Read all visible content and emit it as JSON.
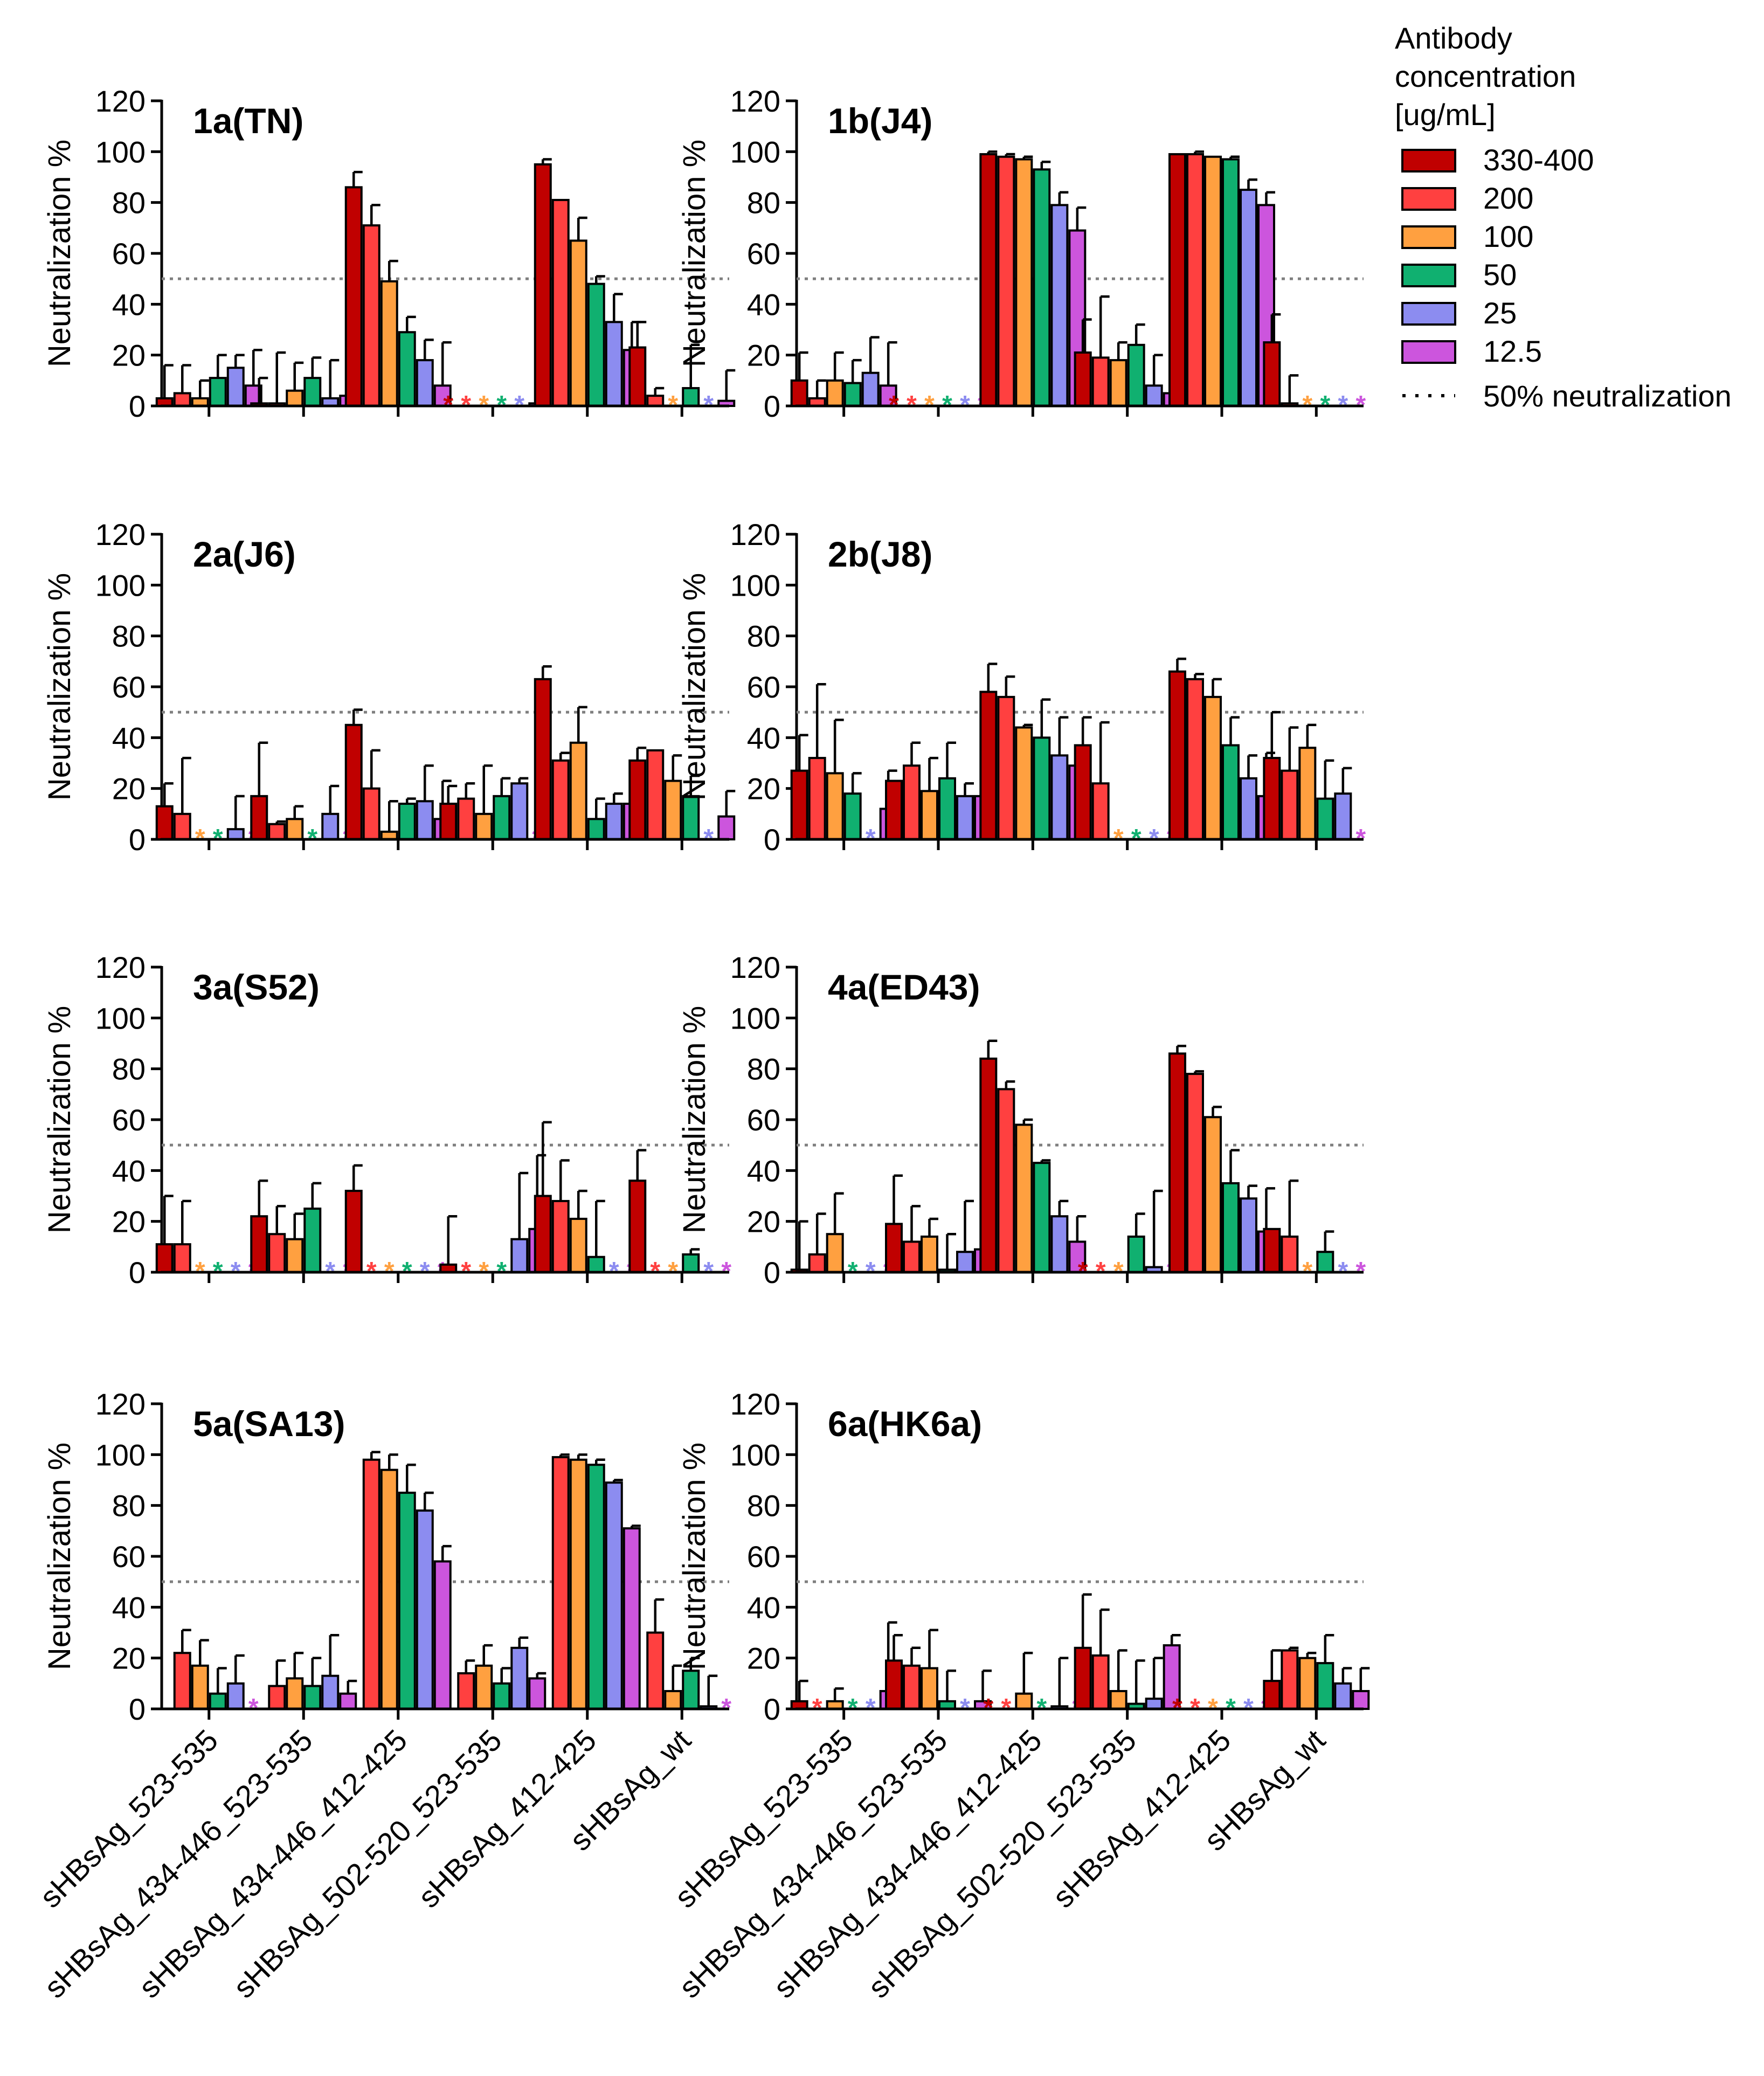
{
  "legend": {
    "title": [
      "Antibody",
      "concentration",
      "[ug/mL]"
    ],
    "items": [
      {
        "label": "330-400",
        "color": "#c00000"
      },
      {
        "label": "200",
        "color": "#ff4040"
      },
      {
        "label": "100",
        "color": "#ffa040"
      },
      {
        "label": "50",
        "color": "#10b070"
      },
      {
        "label": "25",
        "color": "#8c8cf0"
      },
      {
        "label": "12.5",
        "color": "#cc55dd"
      }
    ],
    "reference_label": "50% neutralization"
  },
  "chart_data": {
    "type": "bar",
    "ylabel": "Neutralization %",
    "ylim": [
      0,
      120
    ],
    "yticks": [
      "0",
      "20",
      "40",
      "60",
      "80",
      "100",
      "120"
    ],
    "reference_line": 50,
    "categories": [
      "sHBsAg_523-535",
      "sHBsAg_434-446_523-535",
      "sHBsAg_434-446_412-425",
      "sHBsAg_502-520_523-535",
      "sHBsAg_412-425",
      "sHBsAg_wt"
    ],
    "asterisk": "*",
    "panels": [
      {
        "title": "1a(TN)",
        "groups": [
          {
            "v": [
              3,
              5,
              3,
              11,
              15,
              8
            ],
            "e": [
              13,
              11,
              7,
              9,
              5,
              14
            ]
          },
          {
            "v": [
              1,
              1,
              6,
              11,
              3,
              4
            ],
            "e": [
              10,
              20,
              11,
              8,
              15,
              9
            ]
          },
          {
            "v": [
              86,
              71,
              49,
              29,
              18,
              8
            ],
            "e": [
              6,
              8,
              8,
              6,
              8,
              17
            ]
          },
          {
            "v": [
              null,
              null,
              null,
              null,
              null,
              1
            ],
            "e": [
              0,
              0,
              0,
              0,
              0,
              11
            ],
            "stars": [
              0,
              1,
              2,
              3,
              4
            ]
          },
          {
            "v": [
              95,
              81,
              65,
              48,
              33,
              22
            ],
            "e": [
              2,
              0,
              9,
              3,
              11,
              11
            ]
          },
          {
            "v": [
              23,
              4,
              null,
              7,
              null,
              2
            ],
            "e": [
              10,
              3,
              0,
              17,
              0,
              12
            ],
            "stars": [
              2,
              4
            ]
          }
        ]
      },
      {
        "title": "1b(J4)",
        "groups": [
          {
            "v": [
              10,
              3,
              10,
              9,
              13,
              8
            ],
            "e": [
              11,
              7,
              11,
              9,
              14,
              17
            ]
          },
          {
            "v": [
              null,
              null,
              null,
              null,
              null,
              null
            ],
            "e": [
              0,
              0,
              0,
              0,
              0,
              0
            ],
            "stars": [
              0,
              1,
              2,
              3,
              4,
              5
            ]
          },
          {
            "v": [
              99,
              98,
              97,
              93,
              79,
              69
            ],
            "e": [
              1,
              1,
              1,
              3,
              5,
              9
            ]
          },
          {
            "v": [
              21,
              19,
              18,
              24,
              8,
              5
            ],
            "e": [
              13,
              24,
              7,
              8,
              12,
              6
            ]
          },
          {
            "v": [
              99,
              99,
              98,
              97,
              85,
              79
            ],
            "e": [
              0,
              1,
              0,
              1,
              4,
              5
            ]
          },
          {
            "v": [
              25,
              1,
              null,
              null,
              null,
              null
            ],
            "e": [
              11,
              11,
              0,
              0,
              0,
              0
            ],
            "stars": [
              2,
              3,
              4,
              5
            ]
          }
        ]
      },
      {
        "title": "2a(J6)",
        "groups": [
          {
            "v": [
              13,
              10,
              null,
              null,
              4,
              null
            ],
            "e": [
              9,
              22,
              0,
              0,
              13,
              0
            ],
            "stars": [
              2,
              3,
              5
            ]
          },
          {
            "v": [
              17,
              6,
              8,
              null,
              10,
              null
            ],
            "e": [
              21,
              1,
              5,
              0,
              11,
              0
            ],
            "stars": [
              3,
              5
            ]
          },
          {
            "v": [
              45,
              20,
              3,
              14,
              15,
              8
            ],
            "e": [
              6,
              15,
              12,
              2,
              14,
              15
            ]
          },
          {
            "v": [
              14,
              16,
              10,
              17,
              22,
              null
            ],
            "e": [
              7,
              6,
              19,
              7,
              2,
              0
            ],
            "stars": [
              5
            ]
          },
          {
            "v": [
              63,
              31,
              38,
              8,
              14,
              14
            ],
            "e": [
              5,
              3,
              14,
              8,
              4,
              5
            ]
          },
          {
            "v": [
              31,
              35,
              23,
              17,
              null,
              9
            ],
            "e": [
              5,
              0,
              10,
              8,
              0,
              10
            ],
            "stars": [
              4
            ]
          }
        ]
      },
      {
        "title": "2b(J8)",
        "groups": [
          {
            "v": [
              27,
              32,
              26,
              18,
              null,
              12
            ],
            "e": [
              14,
              29,
              21,
              8,
              0,
              15
            ],
            "stars": [
              4
            ]
          },
          {
            "v": [
              23,
              29,
              19,
              24,
              17,
              17
            ],
            "e": [
              0,
              9,
              13,
              14,
              5,
              3
            ]
          },
          {
            "v": [
              58,
              56,
              44,
              40,
              33,
              29
            ],
            "e": [
              11,
              8,
              1,
              15,
              15,
              7
            ]
          },
          {
            "v": [
              37,
              22,
              null,
              null,
              null,
              null
            ],
            "e": [
              11,
              24,
              0,
              0,
              0,
              0
            ],
            "stars": [
              2,
              3,
              4,
              5
            ]
          },
          {
            "v": [
              66,
              63,
              56,
              37,
              24,
              17
            ],
            "e": [
              5,
              2,
              7,
              11,
              9,
              17
            ]
          },
          {
            "v": [
              32,
              27,
              36,
              16,
              18,
              null
            ],
            "e": [
              18,
              17,
              9,
              15,
              10,
              0
            ],
            "stars": [
              5
            ]
          }
        ]
      },
      {
        "title": "3a(S52)",
        "groups": [
          {
            "v": [
              11,
              11,
              null,
              null,
              null,
              null
            ],
            "e": [
              19,
              17,
              0,
              0,
              0,
              0
            ],
            "stars": [
              2,
              3,
              4,
              5
            ]
          },
          {
            "v": [
              22,
              15,
              13,
              25,
              null,
              null
            ],
            "e": [
              14,
              11,
              10,
              10,
              0,
              0
            ],
            "stars": [
              4,
              5
            ]
          },
          {
            "v": [
              32,
              null,
              null,
              null,
              null,
              null
            ],
            "e": [
              10,
              0,
              0,
              0,
              0,
              0
            ],
            "stars": [
              1,
              2,
              3,
              4,
              5
            ]
          },
          {
            "v": [
              3,
              null,
              null,
              null,
              13,
              17
            ],
            "e": [
              19,
              0,
              0,
              0,
              26,
              29
            ],
            "stars": [
              1,
              2,
              3
            ]
          },
          {
            "v": [
              30,
              28,
              21,
              6,
              null,
              null
            ],
            "e": [
              29,
              16,
              11,
              22,
              0,
              0
            ],
            "stars": [
              4,
              5
            ]
          },
          {
            "v": [
              36,
              null,
              null,
              7,
              null,
              null
            ],
            "e": [
              12,
              0,
              0,
              2,
              0,
              0
            ],
            "stars": [
              1,
              2,
              4,
              5
            ]
          }
        ]
      },
      {
        "title": "4a(ED43)",
        "groups": [
          {
            "v": [
              1,
              7,
              15,
              null,
              null,
              null
            ],
            "e": [
              19,
              16,
              16,
              0,
              0,
              0
            ],
            "stars": [
              3,
              4,
              5
            ]
          },
          {
            "v": [
              19,
              12,
              14,
              1,
              8,
              9
            ],
            "e": [
              19,
              14,
              7,
              14,
              20,
              9
            ]
          },
          {
            "v": [
              84,
              72,
              58,
              43,
              22,
              12
            ],
            "e": [
              7,
              3,
              2,
              1,
              6,
              10
            ]
          },
          {
            "v": [
              null,
              null,
              null,
              14,
              2,
              null
            ],
            "e": [
              0,
              0,
              0,
              9,
              30,
              0
            ],
            "stars": [
              0,
              1,
              2,
              5
            ]
          },
          {
            "v": [
              86,
              78,
              61,
              35,
              29,
              16
            ],
            "e": [
              3,
              1,
              4,
              13,
              5,
              17
            ]
          },
          {
            "v": [
              17,
              14,
              null,
              8,
              null,
              null
            ],
            "e": [
              0,
              22,
              0,
              8,
              0,
              0
            ],
            "stars": [
              2,
              4,
              5
            ]
          }
        ]
      },
      {
        "title": "5a(SA13)",
        "groups": [
          {
            "v": [
              null,
              22,
              17,
              6,
              10,
              null
            ],
            "e": [
              0,
              9,
              10,
              10,
              11,
              0
            ],
            "stars": [
              5
            ]
          },
          {
            "v": [
              null,
              9,
              12,
              9,
              13,
              6
            ],
            "e": [
              0,
              10,
              10,
              11,
              16,
              5
            ]
          },
          {
            "v": [
              null,
              98,
              94,
              85,
              78,
              58
            ],
            "e": [
              0,
              3,
              6,
              11,
              7,
              6
            ]
          },
          {
            "v": [
              null,
              14,
              17,
              10,
              24,
              12
            ],
            "e": [
              0,
              5,
              8,
              6,
              4,
              2
            ]
          },
          {
            "v": [
              null,
              99,
              98,
              96,
              89,
              71
            ],
            "e": [
              0,
              1,
              2,
              2,
              1,
              1
            ]
          },
          {
            "v": [
              null,
              30,
              7,
              15,
              1,
              null
            ],
            "e": [
              0,
              13,
              10,
              5,
              12,
              0
            ],
            "stars": [
              5
            ]
          }
        ]
      },
      {
        "title": "6a(HK6a)",
        "groups": [
          {
            "v": [
              3,
              null,
              3,
              null,
              null,
              7
            ],
            "e": [
              8,
              0,
              5,
              0,
              0,
              27
            ],
            "stars": [
              1,
              3,
              4
            ]
          },
          {
            "v": [
              19,
              17,
              16,
              3,
              null,
              3
            ],
            "e": [
              10,
              7,
              15,
              12,
              0,
              12
            ],
            "stars": [
              4
            ]
          },
          {
            "v": [
              null,
              null,
              6,
              null,
              1,
              null
            ],
            "e": [
              0,
              0,
              16,
              0,
              19,
              0
            ],
            "stars": [
              0,
              1,
              3,
              5
            ]
          },
          {
            "v": [
              24,
              21,
              7,
              2,
              4,
              25
            ],
            "e": [
              21,
              18,
              16,
              17,
              16,
              4
            ]
          },
          {
            "v": [
              null,
              null,
              null,
              null,
              null,
              null
            ],
            "e": [
              0,
              0,
              0,
              0,
              0,
              0
            ],
            "stars": [
              0,
              1,
              2,
              3,
              4,
              5
            ]
          },
          {
            "v": [
              11,
              23,
              20,
              18,
              10,
              7
            ],
            "e": [
              12,
              1,
              2,
              11,
              6,
              9
            ]
          }
        ]
      }
    ]
  }
}
